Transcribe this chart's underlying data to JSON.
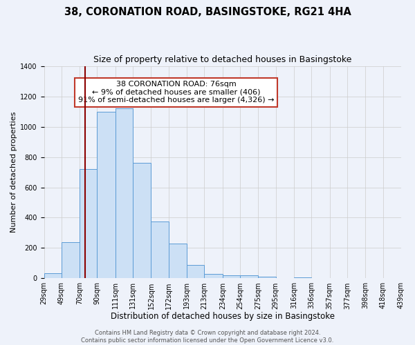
{
  "title": "38, CORONATION ROAD, BASINGSTOKE, RG21 4HA",
  "subtitle": "Size of property relative to detached houses in Basingstoke",
  "xlabel": "Distribution of detached houses by size in Basingstoke",
  "ylabel": "Number of detached properties",
  "bin_labels": [
    "29sqm",
    "49sqm",
    "70sqm",
    "90sqm",
    "111sqm",
    "131sqm",
    "152sqm",
    "172sqm",
    "193sqm",
    "213sqm",
    "234sqm",
    "254sqm",
    "275sqm",
    "295sqm",
    "316sqm",
    "336sqm",
    "357sqm",
    "377sqm",
    "398sqm",
    "418sqm",
    "439sqm"
  ],
  "bin_edges": [
    29,
    49,
    70,
    90,
    111,
    131,
    152,
    172,
    193,
    213,
    234,
    254,
    275,
    295,
    316,
    336,
    357,
    377,
    398,
    418,
    439
  ],
  "counts": [
    35,
    240,
    720,
    1100,
    1120,
    760,
    375,
    230,
    90,
    30,
    20,
    20,
    10,
    0,
    5,
    0,
    0,
    0,
    0,
    0
  ],
  "bar_facecolor": "#cce0f5",
  "bar_edgecolor": "#5b9bd5",
  "vline_x": 76,
  "vline_color": "#8b0000",
  "annotation_lines": [
    "38 CORONATION ROAD: 76sqm",
    "← 9% of detached houses are smaller (406)",
    "91% of semi-detached houses are larger (4,326) →"
  ],
  "annotation_bbox_facecolor": "white",
  "annotation_bbox_edgecolor": "#c0392b",
  "ylim": [
    0,
    1400
  ],
  "yticks": [
    0,
    200,
    400,
    600,
    800,
    1000,
    1200,
    1400
  ],
  "grid_color": "#cccccc",
  "background_color": "#eef2fa",
  "footer_lines": [
    "Contains HM Land Registry data © Crown copyright and database right 2024.",
    "Contains public sector information licensed under the Open Government Licence v3.0."
  ],
  "title_fontsize": 10.5,
  "subtitle_fontsize": 9,
  "xlabel_fontsize": 8.5,
  "ylabel_fontsize": 8,
  "tick_fontsize": 7,
  "annotation_fontsize": 8,
  "footer_fontsize": 6
}
